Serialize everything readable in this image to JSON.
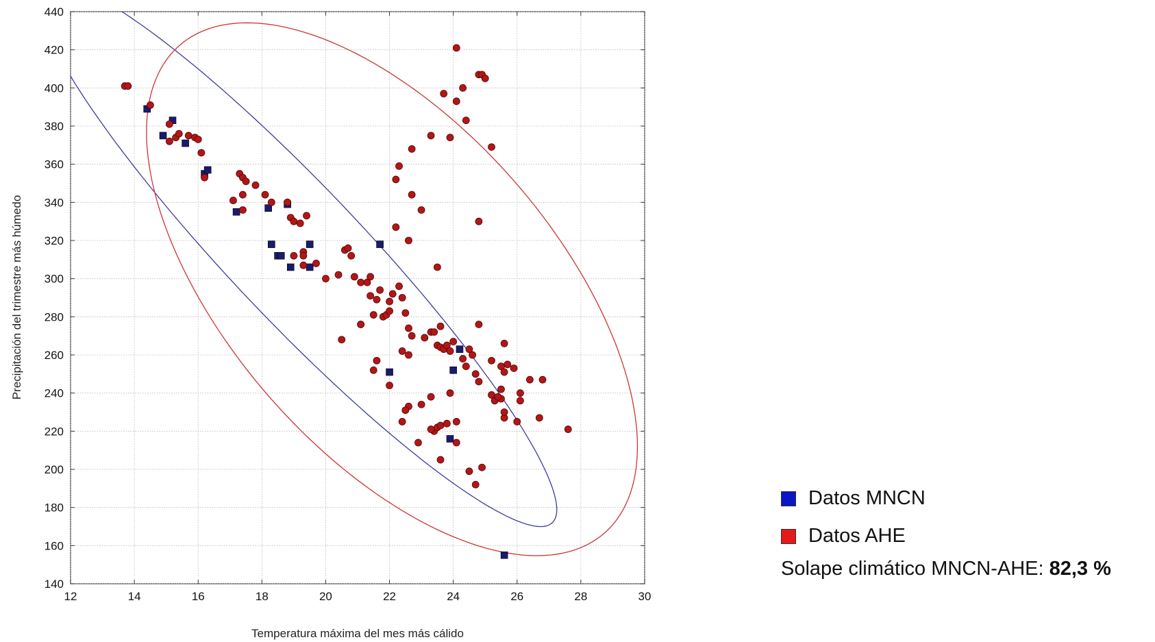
{
  "chart_data": {
    "type": "scatter",
    "title": "",
    "xlabel": "Temperatura máxima del mes más cálido",
    "ylabel": "Precipitación del trimestre más húmedo",
    "xlim": [
      12,
      30
    ],
    "ylim": [
      140,
      440
    ],
    "xticks": [
      "12",
      "14",
      "16",
      "18",
      "20",
      "22",
      "24",
      "26",
      "28",
      "30"
    ],
    "yticks": [
      "140",
      "160",
      "180",
      "200",
      "220",
      "240",
      "260",
      "280",
      "300",
      "320",
      "340",
      "360",
      "380",
      "400",
      "420",
      "440"
    ],
    "grid": true,
    "legend_position": "bottom-right",
    "series": [
      {
        "name": "Datos MNCN",
        "color": "#1a1a6e",
        "marker": "square",
        "points": [
          [
            14.4,
            389
          ],
          [
            15.2,
            383
          ],
          [
            14.9,
            375
          ],
          [
            15.6,
            371
          ],
          [
            16.2,
            355
          ],
          [
            16.3,
            357
          ],
          [
            17.2,
            335
          ],
          [
            18.2,
            337
          ],
          [
            18.8,
            339
          ],
          [
            18.3,
            318
          ],
          [
            18.5,
            312
          ],
          [
            18.6,
            312
          ],
          [
            18.9,
            306
          ],
          [
            19.5,
            318
          ],
          [
            19.5,
            306
          ],
          [
            21.7,
            318
          ],
          [
            22.0,
            251
          ],
          [
            24.0,
            252
          ],
          [
            24.2,
            263
          ],
          [
            23.9,
            216
          ],
          [
            25.6,
            155
          ]
        ]
      },
      {
        "name": "Datos AHE",
        "color": "#b01818",
        "marker": "circle",
        "points": [
          [
            13.7,
            401
          ],
          [
            13.8,
            401
          ],
          [
            14.5,
            391
          ],
          [
            15.1,
            381
          ],
          [
            15.1,
            372
          ],
          [
            15.3,
            374
          ],
          [
            15.4,
            376
          ],
          [
            15.7,
            375
          ],
          [
            15.9,
            374
          ],
          [
            16.0,
            373
          ],
          [
            16.1,
            366
          ],
          [
            16.2,
            353
          ],
          [
            17.1,
            341
          ],
          [
            17.3,
            355
          ],
          [
            17.4,
            353
          ],
          [
            17.4,
            344
          ],
          [
            17.5,
            351
          ],
          [
            17.4,
            336
          ],
          [
            17.8,
            349
          ],
          [
            18.1,
            344
          ],
          [
            18.3,
            340
          ],
          [
            18.8,
            340
          ],
          [
            18.9,
            332
          ],
          [
            19.0,
            330
          ],
          [
            19.2,
            329
          ],
          [
            19.4,
            333
          ],
          [
            19.3,
            314
          ],
          [
            19.3,
            312
          ],
          [
            19.0,
            312
          ],
          [
            19.7,
            308
          ],
          [
            19.3,
            307
          ],
          [
            20.0,
            300
          ],
          [
            20.4,
            302
          ],
          [
            20.6,
            315
          ],
          [
            20.7,
            316
          ],
          [
            20.8,
            312
          ],
          [
            20.9,
            301
          ],
          [
            21.1,
            298
          ],
          [
            21.3,
            298
          ],
          [
            21.4,
            301
          ],
          [
            21.4,
            291
          ],
          [
            21.5,
            281
          ],
          [
            21.6,
            289
          ],
          [
            21.7,
            294
          ],
          [
            21.1,
            276
          ],
          [
            21.8,
            280
          ],
          [
            21.9,
            281
          ],
          [
            22.0,
            283
          ],
          [
            22.0,
            288
          ],
          [
            22.1,
            292
          ],
          [
            22.3,
            296
          ],
          [
            22.2,
            327
          ],
          [
            22.2,
            352
          ],
          [
            22.3,
            359
          ],
          [
            22.4,
            290
          ],
          [
            22.5,
            282
          ],
          [
            22.6,
            320
          ],
          [
            22.7,
            344
          ],
          [
            22.7,
            368
          ],
          [
            23.0,
            336
          ],
          [
            23.3,
            375
          ],
          [
            23.5,
            306
          ],
          [
            23.6,
            275
          ],
          [
            23.7,
            397
          ],
          [
            23.9,
            374
          ],
          [
            24.1,
            393
          ],
          [
            24.1,
            421
          ],
          [
            24.3,
            400
          ],
          [
            24.4,
            383
          ],
          [
            24.8,
            407
          ],
          [
            24.9,
            407
          ],
          [
            25.0,
            405
          ],
          [
            24.8,
            330
          ],
          [
            25.2,
            369
          ],
          [
            24.8,
            276
          ],
          [
            22.6,
            274
          ],
          [
            22.7,
            270
          ],
          [
            23.1,
            269
          ],
          [
            23.3,
            272
          ],
          [
            23.4,
            272
          ],
          [
            23.5,
            265
          ],
          [
            23.6,
            264
          ],
          [
            23.7,
            263
          ],
          [
            23.8,
            265
          ],
          [
            23.9,
            262
          ],
          [
            24.0,
            267
          ],
          [
            24.3,
            258
          ],
          [
            24.4,
            254
          ],
          [
            24.6,
            260
          ],
          [
            24.7,
            250
          ],
          [
            24.8,
            246
          ],
          [
            24.5,
            263
          ],
          [
            25.2,
            257
          ],
          [
            25.5,
            254
          ],
          [
            25.6,
            251
          ],
          [
            25.7,
            255
          ],
          [
            25.9,
            253
          ],
          [
            25.6,
            266
          ],
          [
            25.5,
            242
          ],
          [
            25.5,
            237
          ],
          [
            25.2,
            239
          ],
          [
            25.3,
            236
          ],
          [
            26.1,
            240
          ],
          [
            26.1,
            236
          ],
          [
            26.4,
            247
          ],
          [
            26.8,
            247
          ],
          [
            23.9,
            240
          ],
          [
            23.3,
            238
          ],
          [
            23.0,
            234
          ],
          [
            22.6,
            233
          ],
          [
            22.5,
            231
          ],
          [
            22.4,
            225
          ],
          [
            21.5,
            252
          ],
          [
            21.6,
            257
          ],
          [
            22.0,
            244
          ],
          [
            20.5,
            268
          ],
          [
            21.1,
            276
          ],
          [
            22.6,
            260
          ],
          [
            22.4,
            262
          ],
          [
            23.4,
            220
          ],
          [
            23.3,
            221
          ],
          [
            23.5,
            222
          ],
          [
            23.6,
            223
          ],
          [
            23.8,
            224
          ],
          [
            24.1,
            225
          ],
          [
            24.1,
            214
          ],
          [
            22.9,
            214
          ],
          [
            23.6,
            205
          ],
          [
            24.5,
            199
          ],
          [
            24.7,
            192
          ],
          [
            24.9,
            201
          ],
          [
            25.6,
            227
          ],
          [
            26.0,
            225
          ],
          [
            26.7,
            227
          ],
          [
            27.6,
            221
          ],
          [
            25.4,
            238
          ],
          [
            25.6,
            230
          ]
        ]
      }
    ],
    "ellipses": [
      {
        "series": "Datos MNCN",
        "color": "#3a3aa0"
      },
      {
        "series": "Datos AHE",
        "color": "#cc3333"
      }
    ]
  },
  "legend": {
    "items": [
      {
        "label": "Datos MNCN",
        "color": "#0a16c8"
      },
      {
        "label": "Datos AHE",
        "color": "#e41a1a"
      }
    ],
    "overlap_label": "Solape climático MNCN-AHE: ",
    "overlap_value": "82,3 %"
  }
}
